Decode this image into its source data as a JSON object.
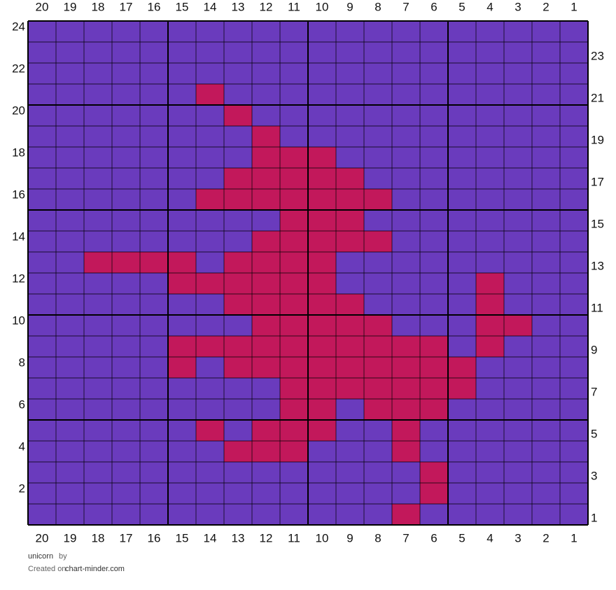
{
  "grid": {
    "type": "stitch-chart",
    "columns": [
      20,
      19,
      18,
      17,
      16,
      15,
      14,
      13,
      12,
      11,
      10,
      9,
      8,
      7,
      6,
      5,
      4,
      3,
      2,
      1
    ],
    "rows": [
      24,
      23,
      22,
      21,
      20,
      19,
      18,
      17,
      16,
      15,
      14,
      13,
      12,
      11,
      10,
      9,
      8,
      7,
      6,
      5,
      4,
      3,
      2,
      1
    ],
    "colors": [
      "#6a3bbd",
      "#c2185b"
    ],
    "cells": [
      [
        0,
        0,
        0,
        0,
        0,
        0,
        0,
        0,
        0,
        0,
        0,
        0,
        0,
        0,
        0,
        0,
        0,
        0,
        0,
        0
      ],
      [
        0,
        0,
        0,
        0,
        0,
        0,
        0,
        0,
        0,
        0,
        0,
        0,
        0,
        0,
        0,
        0,
        0,
        0,
        0,
        0
      ],
      [
        0,
        0,
        0,
        0,
        0,
        0,
        0,
        0,
        0,
        0,
        0,
        0,
        0,
        0,
        0,
        0,
        0,
        0,
        0,
        0
      ],
      [
        0,
        0,
        0,
        0,
        0,
        0,
        1,
        0,
        0,
        0,
        0,
        0,
        0,
        0,
        0,
        0,
        0,
        0,
        0,
        0
      ],
      [
        0,
        0,
        0,
        0,
        0,
        0,
        0,
        1,
        0,
        0,
        0,
        0,
        0,
        0,
        0,
        0,
        0,
        0,
        0,
        0
      ],
      [
        0,
        0,
        0,
        0,
        0,
        0,
        0,
        0,
        1,
        0,
        0,
        0,
        0,
        0,
        0,
        0,
        0,
        0,
        0,
        0
      ],
      [
        0,
        0,
        0,
        0,
        0,
        0,
        0,
        0,
        1,
        1,
        1,
        0,
        0,
        0,
        0,
        0,
        0,
        0,
        0,
        0
      ],
      [
        0,
        0,
        0,
        0,
        0,
        0,
        0,
        1,
        1,
        1,
        1,
        1,
        0,
        0,
        0,
        0,
        0,
        0,
        0,
        0
      ],
      [
        0,
        0,
        0,
        0,
        0,
        0,
        1,
        1,
        1,
        1,
        1,
        1,
        1,
        0,
        0,
        0,
        0,
        0,
        0,
        0
      ],
      [
        0,
        0,
        0,
        0,
        0,
        0,
        0,
        0,
        0,
        1,
        1,
        1,
        0,
        0,
        0,
        0,
        0,
        0,
        0,
        0
      ],
      [
        0,
        0,
        0,
        0,
        0,
        0,
        0,
        0,
        1,
        1,
        1,
        1,
        1,
        0,
        0,
        0,
        0,
        0,
        0,
        0
      ],
      [
        0,
        0,
        1,
        1,
        1,
        1,
        0,
        1,
        1,
        1,
        1,
        0,
        0,
        0,
        0,
        0,
        0,
        0,
        0,
        0
      ],
      [
        0,
        0,
        0,
        0,
        0,
        1,
        1,
        1,
        1,
        1,
        1,
        0,
        0,
        0,
        0,
        0,
        1,
        0,
        0,
        0
      ],
      [
        0,
        0,
        0,
        0,
        0,
        0,
        0,
        1,
        1,
        1,
        1,
        1,
        0,
        0,
        0,
        0,
        1,
        0,
        0,
        0
      ],
      [
        0,
        0,
        0,
        0,
        0,
        0,
        0,
        0,
        1,
        1,
        1,
        1,
        1,
        0,
        0,
        0,
        1,
        1,
        0,
        0
      ],
      [
        0,
        0,
        0,
        0,
        0,
        1,
        1,
        1,
        1,
        1,
        1,
        1,
        1,
        1,
        1,
        0,
        1,
        0,
        0,
        0
      ],
      [
        0,
        0,
        0,
        0,
        0,
        1,
        0,
        1,
        1,
        1,
        1,
        1,
        1,
        1,
        1,
        1,
        0,
        0,
        0,
        0
      ],
      [
        0,
        0,
        0,
        0,
        0,
        0,
        0,
        0,
        0,
        1,
        1,
        1,
        1,
        1,
        1,
        1,
        0,
        0,
        0,
        0
      ],
      [
        0,
        0,
        0,
        0,
        0,
        0,
        0,
        0,
        0,
        1,
        1,
        0,
        1,
        1,
        1,
        0,
        0,
        0,
        0,
        0
      ],
      [
        0,
        0,
        0,
        0,
        0,
        0,
        1,
        0,
        1,
        1,
        1,
        0,
        0,
        1,
        0,
        0,
        0,
        0,
        0,
        0
      ],
      [
        0,
        0,
        0,
        0,
        0,
        0,
        0,
        1,
        1,
        1,
        0,
        0,
        0,
        1,
        0,
        0,
        0,
        0,
        0,
        0
      ],
      [
        0,
        0,
        0,
        0,
        0,
        0,
        0,
        0,
        0,
        0,
        0,
        0,
        0,
        0,
        1,
        0,
        0,
        0,
        0,
        0
      ],
      [
        0,
        0,
        0,
        0,
        0,
        0,
        0,
        0,
        0,
        0,
        0,
        0,
        0,
        0,
        1,
        0,
        0,
        0,
        0,
        0
      ],
      [
        0,
        0,
        0,
        0,
        0,
        0,
        0,
        0,
        0,
        0,
        0,
        0,
        0,
        1,
        0,
        0,
        0,
        0,
        0,
        0
      ]
    ]
  },
  "footer": {
    "name": "unicorn",
    "by": "by",
    "created": "Created on",
    "site": "chart-minder.com"
  }
}
